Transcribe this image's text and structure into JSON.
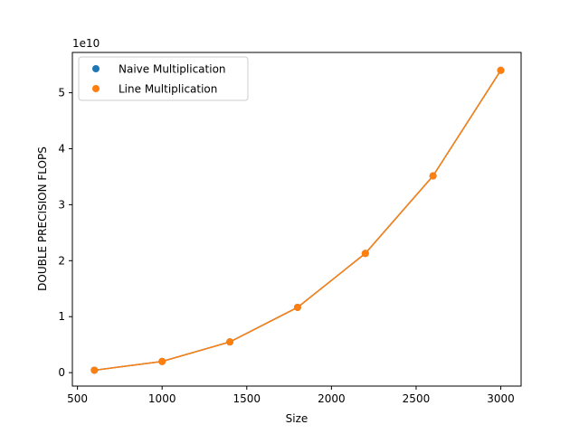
{
  "chart_data": {
    "type": "scatter",
    "title": "",
    "xlabel": "Size",
    "ylabel": "DOUBLE PRECISION FLOPS",
    "y_offset_label": "1e10",
    "xlim": [
      470,
      3120
    ],
    "ylim": [
      -0.24,
      5.72
    ],
    "y_scale_note": "values in units of 1e10",
    "x_ticks": [
      500,
      1000,
      1500,
      2000,
      2500,
      3000
    ],
    "y_ticks": [
      0,
      1,
      2,
      3,
      4,
      5
    ],
    "x_tick_labels": [
      "500",
      "1000",
      "1500",
      "2000",
      "2500",
      "3000"
    ],
    "y_tick_labels": [
      "0",
      "1",
      "2",
      "3",
      "4",
      "5"
    ],
    "grid": false,
    "legend_position": "top-left",
    "series": [
      {
        "name": "Naive Multiplication",
        "color": "#1f77b4",
        "x": [
          600,
          1000,
          1400,
          1800,
          2200,
          2600,
          3000
        ],
        "y": [
          0.043,
          0.2,
          0.549,
          1.166,
          2.13,
          3.515,
          5.4
        ]
      },
      {
        "name": "Line Multiplication",
        "color": "#ff7f0e",
        "x": [
          600,
          1000,
          1400,
          1800,
          2200,
          2600,
          3000
        ],
        "y": [
          0.043,
          0.2,
          0.549,
          1.166,
          2.13,
          3.515,
          5.4
        ]
      }
    ]
  }
}
